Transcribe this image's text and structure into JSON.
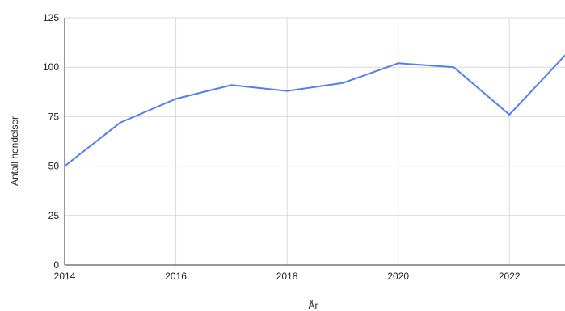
{
  "chart_data": {
    "type": "line",
    "title": "",
    "xlabel": "År",
    "ylabel": "Antall hendelser",
    "x": [
      2014,
      2015,
      2016,
      2017,
      2018,
      2019,
      2020,
      2021,
      2022,
      2023
    ],
    "series": [
      {
        "values": [
          50,
          72,
          84,
          91,
          88,
          92,
          102,
          100,
          76,
          106
        ],
        "color": "#4f7ff0"
      }
    ],
    "xlim": [
      2014,
      2023
    ],
    "ylim": [
      0,
      125
    ],
    "x_ticks": [
      "2014",
      "2016",
      "2018",
      "2020",
      "2022"
    ],
    "y_ticks": [
      "0",
      "25",
      "50",
      "75",
      "100",
      "125"
    ],
    "grid": true,
    "legend": "none",
    "colors": {
      "grid": "#d9d9d9",
      "axis": "#333333",
      "text": "#222222"
    }
  }
}
